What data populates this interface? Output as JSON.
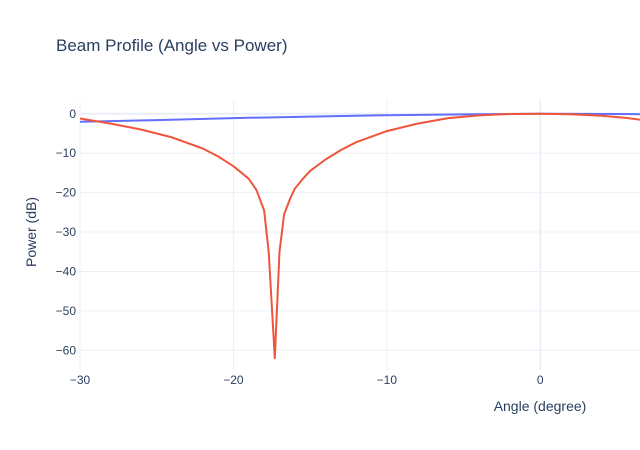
{
  "chart_data": {
    "type": "line",
    "title": "Beam Profile (Angle vs Power)",
    "xlabel": "Angle (degree)",
    "ylabel": "Power (dB)",
    "xlim": [
      -30,
      6.5
    ],
    "ylim": [
      -65,
      3.5
    ],
    "xticks": [
      -30,
      -20,
      -10,
      0
    ],
    "xtick_labels": [
      "−30",
      "−20",
      "−10",
      "0"
    ],
    "yticks": [
      0,
      -10,
      -20,
      -30,
      -40,
      -50,
      -60
    ],
    "ytick_labels": [
      "0",
      "−10",
      "−20",
      "−30",
      "−40",
      "−50",
      "−60"
    ],
    "grid": true,
    "series": [
      {
        "color": "#636efa",
        "x": [
          -30,
          -25,
          -20,
          -15,
          -10,
          -5,
          0,
          5,
          6.5
        ],
        "y": [
          -2.0,
          -1.6,
          -1.1,
          -0.7,
          -0.35,
          -0.15,
          0,
          -0.05,
          -0.1
        ]
      },
      {
        "color": "#ef553b",
        "x": [
          -30,
          -28,
          -26,
          -24,
          -22,
          -21,
          -20,
          -19,
          -18.5,
          -18,
          -17.7,
          -17.3,
          -17.0,
          -16.7,
          -16.3,
          -16,
          -15.5,
          -15,
          -14,
          -13,
          -12,
          -10,
          -8,
          -6,
          -4,
          -2,
          0,
          2,
          4,
          5.5,
          6.5
        ],
        "y": [
          -1.2,
          -2.5,
          -4.0,
          -6.0,
          -8.8,
          -10.8,
          -13.3,
          -16.5,
          -19.3,
          -24.5,
          -35.0,
          -62.0,
          -35.0,
          -25.5,
          -21.5,
          -19.0,
          -16.6,
          -14.5,
          -11.6,
          -9.2,
          -7.2,
          -4.4,
          -2.5,
          -1.1,
          -0.4,
          -0.05,
          0,
          -0.1,
          -0.5,
          -1.0,
          -1.5
        ]
      }
    ]
  }
}
